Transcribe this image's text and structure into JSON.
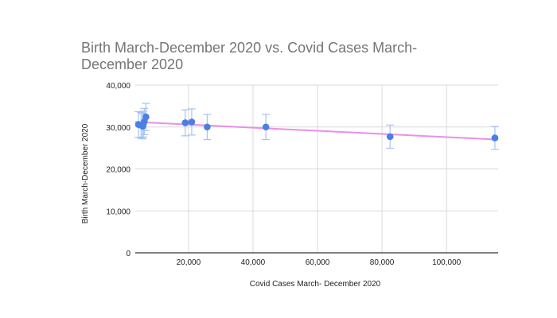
{
  "chart_data": {
    "type": "scatter",
    "title": "Birth March-December 2020 vs. Covid Cases March-December 2020",
    "xlabel": "Covid Cases March- December 2020",
    "ylabel": "Birth March-December 2020",
    "xlim": [
      3500,
      116000
    ],
    "ylim": [
      0,
      40000
    ],
    "x_ticks": [
      20000,
      40000,
      60000,
      80000,
      100000
    ],
    "x_tick_labels": [
      "20,000",
      "40,000",
      "60,000",
      "80,000",
      "100,000"
    ],
    "y_ticks": [
      0,
      10000,
      20000,
      30000,
      40000
    ],
    "y_tick_labels": [
      "0",
      "10,000",
      "20,000",
      "30,000",
      "40,000"
    ],
    "grid": true,
    "colors": {
      "points": "#4a7fe6",
      "error_bars": "#a9c2ef",
      "trendline": "#ea8ee8",
      "grid": "#d9d9d9",
      "axis": "#333333"
    },
    "error_bar_percent": 10,
    "series": [
      {
        "name": "Birth March-December 2020",
        "x": [
          4500,
          5300,
          5800,
          6000,
          6300,
          6800,
          19000,
          21000,
          25800,
          44000,
          82500,
          115000
        ],
        "y": [
          30600,
          30400,
          30200,
          30700,
          31300,
          32400,
          31000,
          31200,
          30000,
          30000,
          27700,
          27400
        ]
      }
    ],
    "trendline": {
      "type": "linear",
      "start": [
        3500,
        31200
      ],
      "end": [
        116000,
        27000
      ]
    }
  }
}
